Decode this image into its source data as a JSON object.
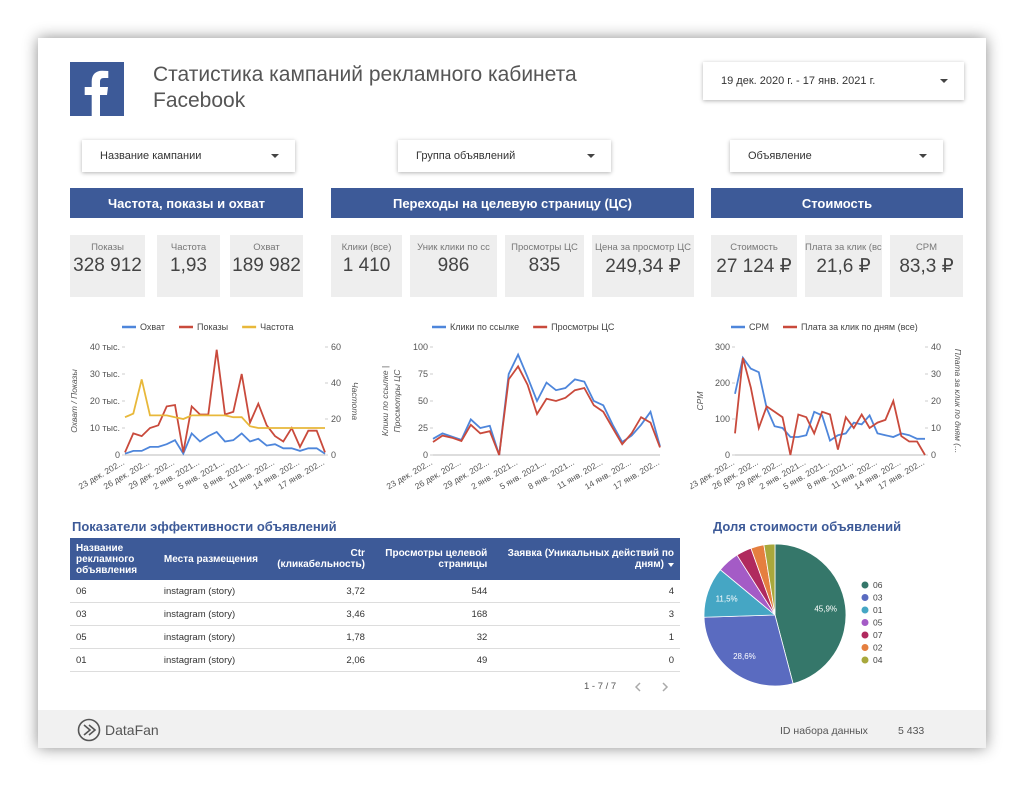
{
  "header": {
    "title": "Статистика кампаний рекламного кабинета Facebook",
    "date_range": "19 дек. 2020 г. - 17 янв. 2021 г."
  },
  "filters": [
    "Название кампании",
    "Группа объявлений",
    "Объявление"
  ],
  "sections": [
    {
      "title": "Частота, показы и охват",
      "kpis": [
        {
          "label": "Показы",
          "value": "328 912"
        },
        {
          "label": "Частота",
          "value": "1,93"
        },
        {
          "label": "Охват",
          "value": "189 982"
        }
      ]
    },
    {
      "title": "Переходы на целевую страницу (ЦС)",
      "kpis": [
        {
          "label": "Клики (все)",
          "value": "1 410"
        },
        {
          "label": "Уник клики по сс",
          "value": "986"
        },
        {
          "label": "Просмотры ЦС",
          "value": "835"
        },
        {
          "label": "Цена за просмотр ЦС",
          "value": "249,34 ₽"
        }
      ]
    },
    {
      "title": "Стоимость",
      "kpis": [
        {
          "label": "Стоимость",
          "value": "27 124 ₽"
        },
        {
          "label": "Плата за клик (все)",
          "value": "21,6 ₽"
        },
        {
          "label": "CPM",
          "value": "83,3 ₽"
        }
      ]
    }
  ],
  "charts": [
    {
      "type": "line",
      "categories": [
        "23 дек. 202...",
        null,
        null,
        "26 дек. 202...",
        null,
        null,
        "29 дек. 202...",
        null,
        null,
        "2 янв. 2021...",
        null,
        null,
        "5 янв. 2021...",
        null,
        null,
        "8 янв. 2021...",
        null,
        null,
        "11 янв. 202...",
        null,
        null,
        "14 янв. 202...",
        null,
        null,
        "17 янв. 202..."
      ],
      "ylabel": "Охват / Показы",
      "y2label": "Частота",
      "ylim": [
        0,
        40000
      ],
      "yticks": [
        0,
        {
          "value": 10000,
          "label": "10 тыс."
        },
        {
          "value": 20000,
          "label": "20 тыс."
        },
        {
          "value": 30000,
          "label": "30 тыс."
        },
        {
          "value": 40000,
          "label": "40 тыс."
        }
      ],
      "y2lim": [
        0,
        60
      ],
      "y2ticks": [
        0,
        20,
        40,
        60
      ],
      "grid": false,
      "series": [
        {
          "name": "Охват",
          "color": "#4e86db",
          "values": [
            500,
            1500,
            1500,
            3000,
            3000,
            4000,
            5500,
            500,
            8000,
            5000,
            7000,
            8500,
            5000,
            5500,
            8000,
            5000,
            6000,
            3500,
            4000,
            2500,
            2500,
            1500,
            2500,
            2500,
            500
          ]
        },
        {
          "name": "Показы",
          "color": "#c94a3c",
          "values": [
            1000,
            8000,
            7000,
            10000,
            11000,
            18000,
            18500,
            1000,
            18000,
            15000,
            15000,
            39000,
            15000,
            16000,
            30000,
            12000,
            19000,
            11000,
            7000,
            5000,
            10000,
            3000,
            9000,
            9000,
            1000
          ]
        },
        {
          "name": "Частота",
          "color": "#e8b83a",
          "axis": "y2",
          "values": [
            21,
            23,
            42,
            22,
            22,
            22,
            21,
            20,
            22,
            22,
            22,
            22,
            22,
            21,
            21,
            16,
            15,
            15,
            15,
            15,
            15,
            15,
            15,
            15,
            15
          ]
        }
      ]
    },
    {
      "type": "line",
      "categories": [
        "23 дек. 202...",
        null,
        null,
        "26 дек. 202...",
        null,
        null,
        "29 дек. 202...",
        null,
        null,
        "2 янв. 2021...",
        null,
        null,
        "5 янв. 2021...",
        null,
        null,
        "8 янв. 2021...",
        null,
        null,
        "11 янв. 202...",
        null,
        null,
        "14 янв. 202...",
        null,
        null,
        "17 янв. 202..."
      ],
      "ylabel": [
        "Клики по ссылке |",
        "Просмотры ЦС"
      ],
      "ylim": [
        0,
        100
      ],
      "yticks": [
        0,
        25,
        50,
        75,
        100
      ],
      "grid": false,
      "series": [
        {
          "name": "Клики по ссылке",
          "color": "#4e86db",
          "values": [
            15,
            20,
            17,
            14,
            33,
            25,
            27,
            0,
            75,
            93,
            72,
            50,
            67,
            60,
            62,
            70,
            68,
            50,
            46,
            28,
            12,
            18,
            28,
            40,
            8
          ]
        },
        {
          "name": "Просмотры ЦС",
          "color": "#c94a3c",
          "values": [
            12,
            18,
            16,
            13,
            28,
            20,
            22,
            0,
            70,
            82,
            65,
            38,
            52,
            50,
            53,
            60,
            62,
            46,
            40,
            25,
            10,
            20,
            35,
            30,
            7
          ]
        }
      ]
    },
    {
      "type": "line",
      "categories": [
        "23 дек. 202...",
        null,
        null,
        "26 дек. 202...",
        null,
        null,
        "29 дек. 202...",
        null,
        null,
        "2 янв. 2021...",
        null,
        null,
        "5 янв. 2021...",
        null,
        null,
        "8 янв. 2021...",
        null,
        null,
        "11 янв. 202...",
        null,
        null,
        "14 янв. 202...",
        null,
        null,
        "17 янв. 202..."
      ],
      "ylabel": "CPM",
      "y2label": "Плата за клик по дням (...",
      "ylim": [
        0,
        300
      ],
      "yticks": [
        0,
        100,
        200,
        300
      ],
      "y2lim": [
        0,
        40
      ],
      "y2ticks": [
        0,
        10,
        20,
        30,
        40
      ],
      "grid": false,
      "series": [
        {
          "name": "CPM",
          "color": "#4e86db",
          "values": [
            170,
            270,
            240,
            230,
            130,
            80,
            75,
            50,
            50,
            55,
            120,
            110,
            40,
            55,
            60,
            90,
            85,
            110,
            60,
            55,
            50,
            60,
            55,
            45,
            45
          ]
        },
        {
          "name": "Плата за клик по дням (все)",
          "color": "#c94a3c",
          "axis": "y2",
          "values": [
            8,
            36,
            25,
            10,
            18,
            16,
            14,
            0,
            15,
            14,
            8,
            16,
            15,
            2,
            14,
            10,
            15,
            10,
            12,
            13,
            20,
            7,
            5,
            5,
            0
          ]
        }
      ]
    }
  ],
  "table": {
    "title": "Показатели эффективности объявлений",
    "columns": [
      "Название рекламного объявления",
      "Места размещения",
      "Ctr (кликабельность)",
      "Просмотры целевой страницы",
      "Заявка (Уникальных действий по дням)"
    ],
    "rows": [
      [
        "06",
        "instagram (story)",
        "3,72",
        "544",
        "4"
      ],
      [
        "03",
        "instagram (story)",
        "3,46",
        "168",
        "3"
      ],
      [
        "05",
        "instagram (story)",
        "1,78",
        "32",
        "1"
      ],
      [
        "01",
        "instagram (story)",
        "2,06",
        "49",
        "0"
      ]
    ],
    "pagination": "1 - 7 / 7"
  },
  "pie": {
    "type": "pie",
    "title": "Доля стоимости объявлений",
    "categories": [
      "06",
      "03",
      "01",
      "05",
      "07",
      "02",
      "04"
    ],
    "values": [
      45.9,
      28.6,
      11.5,
      5,
      3.5,
      3,
      2.5
    ],
    "value_labels": [
      "45,9%",
      "28,6%",
      "11,5%",
      null,
      null,
      null,
      null
    ],
    "colors": [
      "#35776a",
      "#5a6bc0",
      "#45a6c4",
      "#a45bc6",
      "#b02a5e",
      "#e57f3f",
      "#a8a83c"
    ]
  },
  "footer": {
    "brand": "DataFan",
    "dataset_label": "ID набора данных",
    "dataset_id": "5 433"
  }
}
